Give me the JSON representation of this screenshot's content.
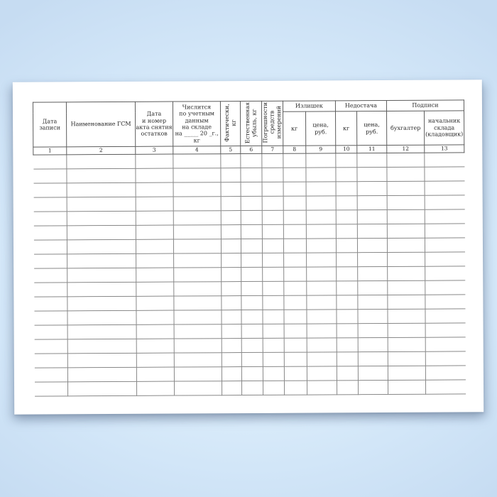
{
  "document": {
    "kind": "blank-fuel-ledger-form",
    "language": "ru"
  },
  "table": {
    "columns": [
      {
        "number": "1",
        "label": "Дата\nзаписи",
        "orientation": "horizontal"
      },
      {
        "number": "2",
        "label": "Наименование ГСМ",
        "orientation": "horizontal"
      },
      {
        "number": "3",
        "label": "Дата\nи номер\nакта снятия\nостатков",
        "orientation": "horizontal"
      },
      {
        "number": "4",
        "label": "Числится\nпо учетным\nданным\nна складе\nна _____ 20 _г.,\nкг",
        "orientation": "horizontal"
      },
      {
        "number": "5",
        "label": "Фактически,\nкг",
        "orientation": "vertical"
      },
      {
        "number": "6",
        "label": "Естественная\nубыль, кг",
        "orientation": "vertical"
      },
      {
        "number": "7",
        "label": "Погрешности\nсредств\nизмерений",
        "orientation": "vertical"
      },
      {
        "number": "8",
        "label": "кг",
        "group": "Излишек"
      },
      {
        "number": "9",
        "label": "цена,\nруб.",
        "group": "Излишек"
      },
      {
        "number": "10",
        "label": "кг",
        "group": "Недостача"
      },
      {
        "number": "11",
        "label": "цена,\nруб.",
        "group": "Недостача"
      },
      {
        "number": "12",
        "label": "бухгалтер",
        "group": "Подписи"
      },
      {
        "number": "13",
        "label": "начальник\nсклада\n(кладовщик)",
        "group": "Подписи"
      }
    ],
    "groups": [
      {
        "label": "Излишек"
      },
      {
        "label": "Недостача"
      },
      {
        "label": "Подписи"
      }
    ],
    "body_row_count": 17,
    "body_cells_empty": true
  },
  "colors": {
    "background_center": "#f0f7fd",
    "background_edge": "#c6dcf2",
    "paper": "#ffffff",
    "header_line": "#5d5d5d",
    "row_line": "#888888",
    "text": "#262626"
  }
}
